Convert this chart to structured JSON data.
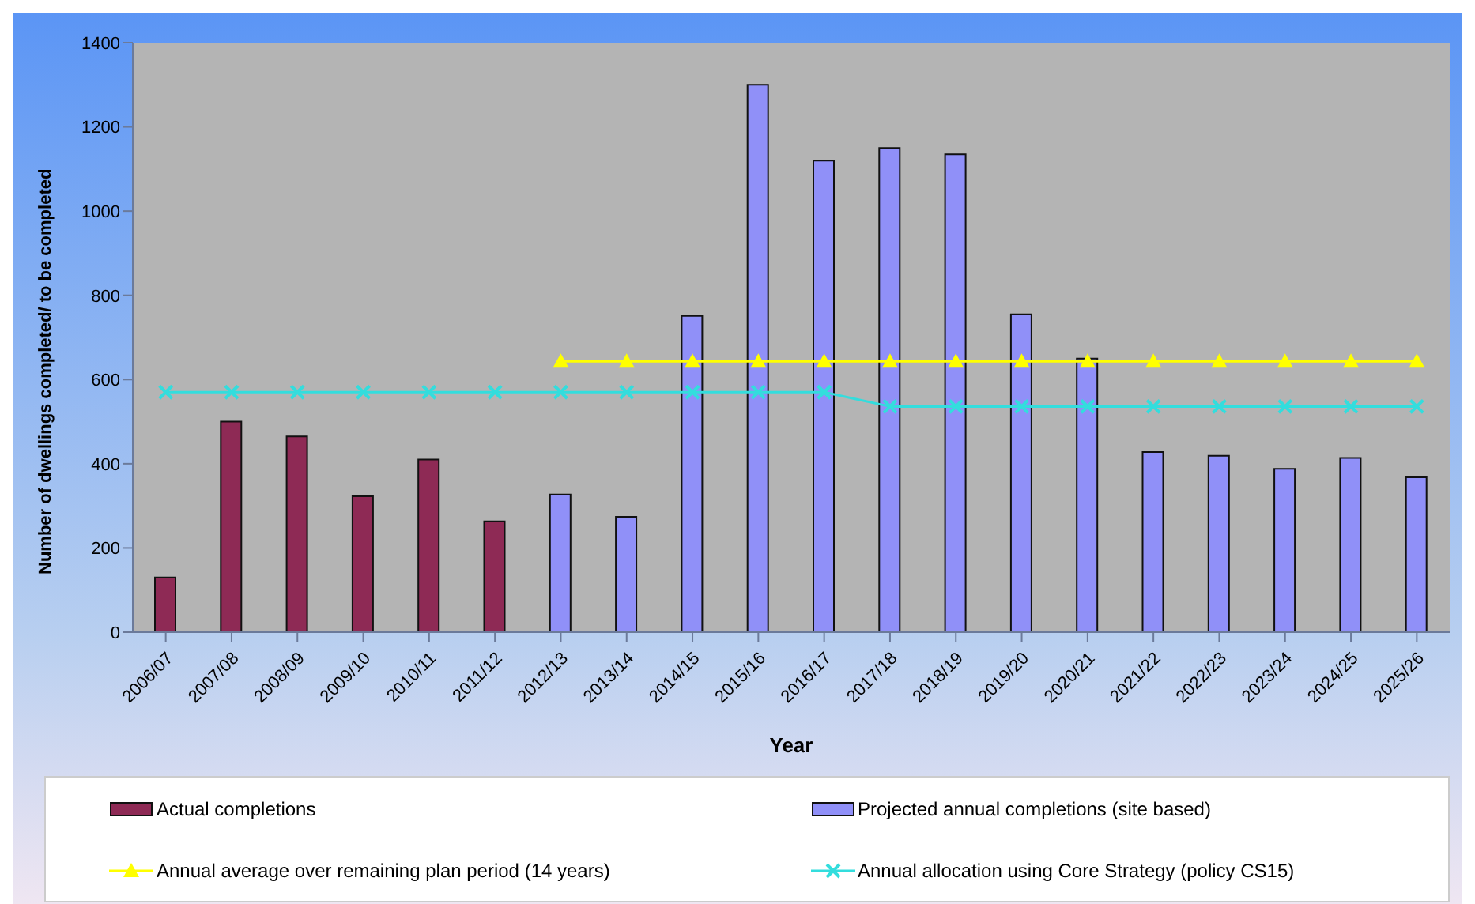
{
  "chart_data": {
    "type": "bar",
    "xlabel": "Year",
    "ylabel": "Number of dwellings completed/ to be completed",
    "categories": [
      "2006/07",
      "2007/08",
      "2008/09",
      "2009/10",
      "2010/11",
      "2011/12",
      "2012/13",
      "2013/14",
      "2014/15",
      "2015/16",
      "2016/17",
      "2017/18",
      "2018/19",
      "2019/20",
      "2020/21",
      "2021/22",
      "2022/23",
      "2023/24",
      "2024/25",
      "2025/26"
    ],
    "series": [
      {
        "name": "Actual completions",
        "color": "#8e2a55",
        "values": [
          130,
          500,
          465,
          323,
          410,
          263,
          null,
          null,
          null,
          null,
          null,
          null,
          null,
          null,
          null,
          null,
          null,
          null,
          null,
          null
        ]
      },
      {
        "name": "Projected annual completions (site based)",
        "color": "#9090f8",
        "values": [
          null,
          null,
          null,
          null,
          null,
          null,
          327,
          274,
          751,
          1300,
          1120,
          1150,
          1135,
          755,
          650,
          428,
          419,
          388,
          414,
          368
        ]
      },
      {
        "name": "Annual average over remaining plan period (14 years)",
        "type": "line",
        "color": "#ffff00",
        "marker": "triangle",
        "values": [
          null,
          null,
          null,
          null,
          null,
          null,
          643,
          643,
          643,
          643,
          643,
          643,
          643,
          643,
          643,
          643,
          643,
          643,
          643,
          643
        ]
      },
      {
        "name": "Annual allocation using Core Strategy (policy CS15)",
        "type": "line",
        "color": "#33dddd",
        "marker": "cross",
        "values": [
          570,
          570,
          570,
          570,
          570,
          570,
          570,
          570,
          570,
          570,
          570,
          536,
          536,
          536,
          536,
          536,
          536,
          536,
          536,
          536
        ]
      }
    ],
    "ylim": [
      0,
      1400
    ],
    "yticks": [
      0,
      200,
      400,
      600,
      800,
      1000,
      1200,
      1400
    ],
    "grid": false,
    "legend": "bottom"
  }
}
